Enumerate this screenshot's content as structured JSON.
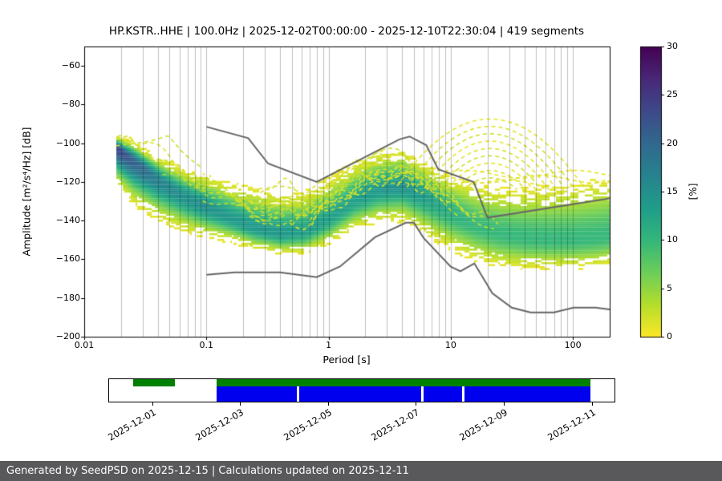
{
  "chart_data": {
    "type": "heatmap",
    "subtype": "seismic PPSD probability density",
    "title": "HP.KSTR..HHE | 100.0Hz | 2025-12-02T00:00:00 - 2025-12-10T22:30:04 | 419 segments",
    "xlabel": "Period [s]",
    "ylabel": "Amplitude [m²/s⁴/Hz] [dB]",
    "xscale": "log",
    "xlim": [
      0.01,
      200
    ],
    "ylim": [
      -200,
      -50
    ],
    "grid": "vertical log gridlines, major+minor",
    "xticks": [
      {
        "v": 0.01,
        "label": "0.01"
      },
      {
        "v": 0.1,
        "label": "0.1"
      },
      {
        "v": 1,
        "label": "1"
      },
      {
        "v": 10,
        "label": "10"
      },
      {
        "v": 100,
        "label": "100"
      }
    ],
    "yticks": [
      {
        "v": -60,
        "label": "−60"
      },
      {
        "v": -80,
        "label": "−80"
      },
      {
        "v": -100,
        "label": "−100"
      },
      {
        "v": -120,
        "label": "−120"
      },
      {
        "v": -140,
        "label": "−140"
      },
      {
        "v": -160,
        "label": "−160"
      },
      {
        "v": -180,
        "label": "−180"
      },
      {
        "v": -200,
        "label": "−200"
      }
    ],
    "colorbar": {
      "label": "[%]",
      "min": 0,
      "max": 30,
      "ticks": [
        0,
        5,
        10,
        15,
        20,
        25,
        30
      ],
      "colormap": "viridis reversed (0%=yellow, 30%=dark purple)",
      "stops": [
        {
          "t": 0.0,
          "c": "#440154"
        },
        {
          "t": 0.11,
          "c": "#482878"
        },
        {
          "t": 0.22,
          "c": "#3e4989"
        },
        {
          "t": 0.33,
          "c": "#31688e"
        },
        {
          "t": 0.44,
          "c": "#26828e"
        },
        {
          "t": 0.56,
          "c": "#1f9e89"
        },
        {
          "t": 0.67,
          "c": "#35b779"
        },
        {
          "t": 0.78,
          "c": "#6ece58"
        },
        {
          "t": 0.89,
          "c": "#b5de2b"
        },
        {
          "t": 1.0,
          "c": "#fde725"
        }
      ]
    },
    "noise_models": {
      "color": "#666666",
      "linewidth": 2,
      "high_noise_model": [
        [
          0.1,
          -91.5
        ],
        [
          0.22,
          -97.4
        ],
        [
          0.32,
          -110.5
        ],
        [
          0.8,
          -120.0
        ],
        [
          3.8,
          -98.0
        ],
        [
          4.6,
          -96.5
        ],
        [
          6.3,
          -101.0
        ],
        [
          7.9,
          -113.5
        ],
        [
          15.4,
          -120.0
        ],
        [
          20.0,
          -138.5
        ],
        [
          200.0,
          -128.5
        ]
      ],
      "low_noise_model": [
        [
          0.1,
          -168.0
        ],
        [
          0.17,
          -166.7
        ],
        [
          0.4,
          -166.7
        ],
        [
          0.8,
          -169.2
        ],
        [
          1.24,
          -163.7
        ],
        [
          2.4,
          -148.6
        ],
        [
          4.3,
          -141.1
        ],
        [
          5.0,
          -141.1
        ],
        [
          6.0,
          -149.0
        ],
        [
          10.0,
          -163.8
        ],
        [
          12.0,
          -166.2
        ],
        [
          15.6,
          -162.1
        ],
        [
          21.9,
          -177.5
        ],
        [
          31.6,
          -185.0
        ],
        [
          45.0,
          -187.5
        ],
        [
          70.0,
          -187.5
        ],
        [
          101.0,
          -185.0
        ],
        [
          154.0,
          -185.0
        ],
        [
          200.0,
          -185.9
        ]
      ]
    },
    "ppsd_band": [
      {
        "p": 0.018,
        "mode": -102,
        "su": 2.5,
        "sd": 8.0,
        "peak": 24
      },
      {
        "p": 0.025,
        "mode": -109,
        "su": 4.0,
        "sd": 9.5,
        "peak": 21
      },
      {
        "p": 0.04,
        "mode": -119,
        "su": 5.0,
        "sd": 9.0,
        "peak": 17
      },
      {
        "p": 0.063,
        "mode": -127,
        "su": 6.0,
        "sd": 8.0,
        "peak": 15
      },
      {
        "p": 0.1,
        "mode": -133,
        "su": 7.0,
        "sd": 7.0,
        "peak": 15
      },
      {
        "p": 0.16,
        "mode": -139,
        "su": 8.0,
        "sd": 5.5,
        "peak": 14
      },
      {
        "p": 0.25,
        "mode": -144,
        "su": 9.0,
        "sd": 5.0,
        "peak": 14
      },
      {
        "p": 0.4,
        "mode": -147,
        "su": 9.5,
        "sd": 4.5,
        "peak": 14
      },
      {
        "p": 0.63,
        "mode": -146,
        "su": 9.5,
        "sd": 5.0,
        "peak": 13
      },
      {
        "p": 1.0,
        "mode": -139,
        "su": 9.5,
        "sd": 6.0,
        "peak": 13
      },
      {
        "p": 1.6,
        "mode": -130,
        "su": 9.0,
        "sd": 6.5,
        "peak": 13
      },
      {
        "p": 2.5,
        "mode": -124,
        "su": 8.5,
        "sd": 7.5,
        "peak": 14
      },
      {
        "p": 4.0,
        "mode": -122,
        "su": 8.0,
        "sd": 8.0,
        "peak": 15
      },
      {
        "p": 6.3,
        "mode": -128,
        "su": 7.5,
        "sd": 9.0,
        "peak": 13
      },
      {
        "p": 10,
        "mode": -136,
        "su": 8.5,
        "sd": 9.0,
        "peak": 11
      },
      {
        "p": 16,
        "mode": -143,
        "su": 10.0,
        "sd": 8.5,
        "peak": 10
      },
      {
        "p": 25,
        "mode": -147,
        "su": 11.0,
        "sd": 8.0,
        "peak": 10
      },
      {
        "p": 40,
        "mode": -149,
        "su": 12.0,
        "sd": 7.5,
        "peak": 10
      },
      {
        "p": 63,
        "mode": -150,
        "su": 13.0,
        "sd": 7.0,
        "peak": 10
      },
      {
        "p": 100,
        "mode": -150,
        "su": 13.5,
        "sd": 7.0,
        "peak": 10
      },
      {
        "p": 160,
        "mode": -149,
        "su": 14.0,
        "sd": 7.0,
        "peak": 10
      },
      {
        "p": 200,
        "mode": -148,
        "su": 14.0,
        "sd": 7.0,
        "peak": 10
      }
    ],
    "outliers": {
      "description": "sparse yellow low-probability PSD strands above main band",
      "strand_count": 34,
      "seed": 1234,
      "max_db": -96,
      "dome_arcs": 9,
      "dome_center_period_s": 21,
      "dome_apex_db": -87.5
    }
  },
  "timeline": {
    "domain_days": 11.5,
    "green_color": "#008000",
    "blue_color": "#0000ee",
    "green_segments_days": [
      [
        0.55,
        1.5
      ],
      [
        2.45,
        10.95
      ]
    ],
    "blue_segments_days": [
      [
        2.45,
        4.28
      ],
      [
        4.33,
        7.1
      ],
      [
        7.15,
        8.03
      ],
      [
        8.08,
        10.95
      ]
    ],
    "ticks": [
      {
        "day": 1,
        "label": "2025-12-01"
      },
      {
        "day": 3,
        "label": "2025-12-03"
      },
      {
        "day": 5,
        "label": "2025-12-05"
      },
      {
        "day": 7,
        "label": "2025-12-07"
      },
      {
        "day": 9,
        "label": "2025-12-09"
      },
      {
        "day": 11,
        "label": "2025-12-11"
      }
    ]
  },
  "footer": {
    "text": "Generated by SeedPSD on 2025-12-15 | Calculations updated on 2025-12-11",
    "background": "#59595b"
  }
}
